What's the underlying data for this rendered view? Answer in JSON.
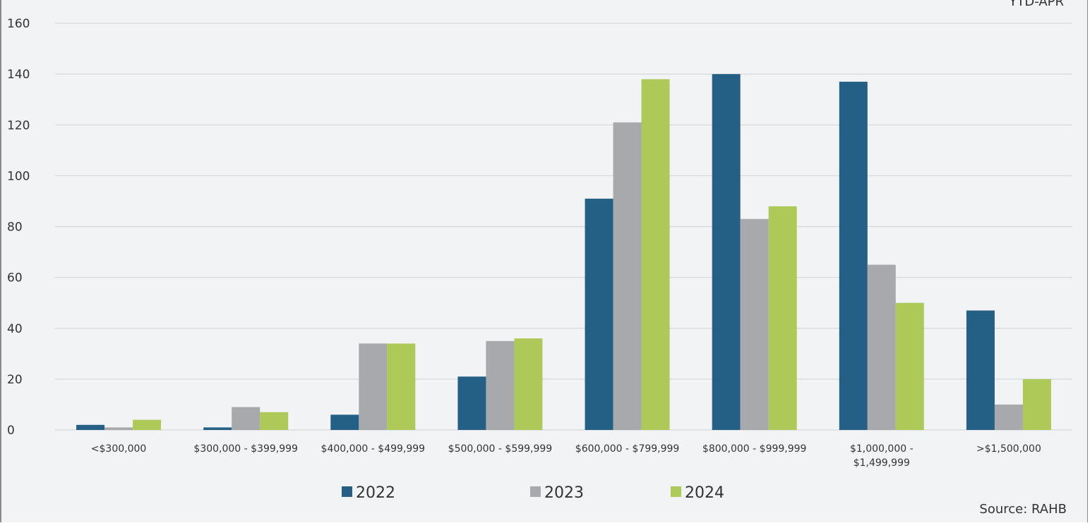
{
  "chart_data": {
    "type": "bar",
    "period_label": "YTD-APR",
    "source": "Source: RAHB",
    "categories": [
      [
        "<$300,000"
      ],
      [
        "$300,000 - $399,999"
      ],
      [
        "$400,000 - $499,999"
      ],
      [
        "$500,000 - $599,999"
      ],
      [
        "$600,000 - $799,999"
      ],
      [
        "$800,000 - $999,999"
      ],
      [
        "$1,000,000 -",
        "$1,499,999"
      ],
      [
        ">$1,500,000"
      ]
    ],
    "series": [
      {
        "name": "2022",
        "color": "#245f85",
        "values": [
          2,
          1,
          6,
          21,
          91,
          140,
          137,
          47
        ]
      },
      {
        "name": "2023",
        "color": "#a7a9ac",
        "values": [
          1,
          9,
          34,
          35,
          121,
          83,
          65,
          10
        ]
      },
      {
        "name": "2024",
        "color": "#adc957",
        "values": [
          4,
          7,
          34,
          36,
          138,
          88,
          50,
          20
        ]
      }
    ],
    "ylim": [
      0,
      160
    ],
    "yticks": [
      0,
      20,
      40,
      60,
      80,
      100,
      120,
      140,
      160
    ],
    "grid": true,
    "legend_position": "bottom-center"
  }
}
